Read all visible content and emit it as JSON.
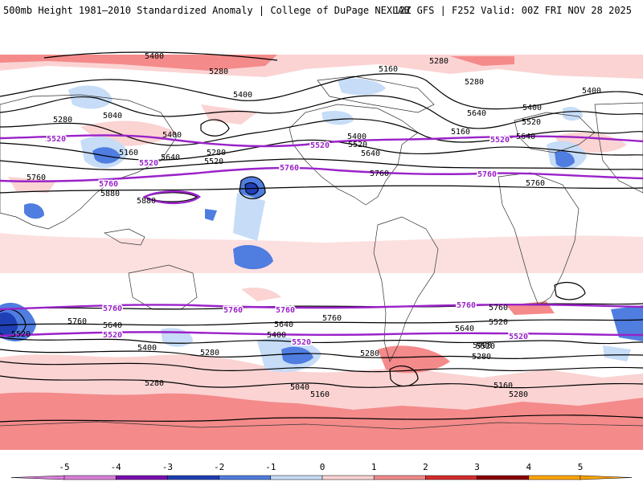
{
  "header": {
    "left": "500mb Height 1981–2010 Standardized Anomaly | College of DuPage NEXLAB",
    "right": "12Z GFS | F252 Valid: 00Z FRI NOV 28 2025"
  },
  "colors": {
    "neg5": "#d97fd9",
    "neg4": "#7a0fb0",
    "neg3": "#1f3fb5",
    "neg2": "#4f7de0",
    "neg1": "#c6dcf7",
    "zero": "#ffffff",
    "pos1": "#fbd3d3",
    "pos2": "#f48a8a",
    "pos3": "#d62b2b",
    "pos4": "#8b0000",
    "pos5": "#ffa500",
    "contour": "#000000",
    "highlight": "#9a22c9",
    "coast": "#333333"
  },
  "colorbar": {
    "ticks": [
      "-5",
      "-4",
      "-3",
      "-2",
      "-1",
      "0",
      "1",
      "2",
      "3",
      "4",
      "5"
    ],
    "colors": [
      "#d97fd9",
      "#7a0fb0",
      "#1f3fb5",
      "#4f7de0",
      "#c6dcf7",
      "#ffffff",
      "#fbd3d3",
      "#f48a8a",
      "#d62b2b",
      "#8b0000",
      "#ffa500"
    ]
  },
  "contour_labels": [
    {
      "text": "5400",
      "id": "c1"
    },
    {
      "text": "5280",
      "id": "c2"
    },
    {
      "text": "5160",
      "id": "c3"
    },
    {
      "text": "5280",
      "id": "c4"
    },
    {
      "text": "5400",
      "id": "c5"
    },
    {
      "text": "5280",
      "id": "c6"
    },
    {
      "text": "5040",
      "id": "c7"
    },
    {
      "text": "5400",
      "id": "c8"
    },
    {
      "text": "5160",
      "id": "c9"
    },
    {
      "text": "5640",
      "id": "c10"
    },
    {
      "text": "5520",
      "id": "c11"
    },
    {
      "text": "5280",
      "id": "c12"
    },
    {
      "text": "5760",
      "id": "c13"
    },
    {
      "text": "5880",
      "id": "c14"
    },
    {
      "text": "5880",
      "id": "c15"
    },
    {
      "text": "5400",
      "id": "c16"
    },
    {
      "text": "5520",
      "id": "c17"
    },
    {
      "text": "5640",
      "id": "c18"
    },
    {
      "text": "5760",
      "id": "c19"
    },
    {
      "text": "5160",
      "id": "c20"
    },
    {
      "text": "5280",
      "id": "c21"
    },
    {
      "text": "5400",
      "id": "c22"
    },
    {
      "text": "5520",
      "id": "c23"
    },
    {
      "text": "5640",
      "id": "c24"
    },
    {
      "text": "5760",
      "id": "c25"
    },
    {
      "text": "5640",
      "id": "c26"
    },
    {
      "text": "5400",
      "id": "c27"
    },
    {
      "text": "5520",
      "id": "c28"
    },
    {
      "text": "5640",
      "id": "c29"
    },
    {
      "text": "5400",
      "id": "c30"
    },
    {
      "text": "5280",
      "id": "c31"
    },
    {
      "text": "5040",
      "id": "c32"
    },
    {
      "text": "5160",
      "id": "c33"
    },
    {
      "text": "5280",
      "id": "c34"
    },
    {
      "text": "5760",
      "id": "c35"
    },
    {
      "text": "5640",
      "id": "c36"
    },
    {
      "text": "5520",
      "id": "c37"
    },
    {
      "text": "5400",
      "id": "c38"
    },
    {
      "text": "5280",
      "id": "c39"
    },
    {
      "text": "5160",
      "id": "c40"
    },
    {
      "text": "5280",
      "id": "c41"
    },
    {
      "text": "5280",
      "id": "c42"
    },
    {
      "text": "5520",
      "id": "c43"
    },
    {
      "text": "5640",
      "id": "c44"
    },
    {
      "text": "5760",
      "id": "c45"
    },
    {
      "text": "5400",
      "id": "c46"
    },
    {
      "text": "5520",
      "id": "c47"
    },
    {
      "text": "5760",
      "id": "c48"
    }
  ],
  "highlight_labels": [
    {
      "text": "5520",
      "id": "h1"
    },
    {
      "text": "5760",
      "id": "h2"
    },
    {
      "text": "5520",
      "id": "h3"
    },
    {
      "text": "5760",
      "id": "h4"
    },
    {
      "text": "5520",
      "id": "h5"
    },
    {
      "text": "5760",
      "id": "h6"
    },
    {
      "text": "5520",
      "id": "h7"
    },
    {
      "text": "5760",
      "id": "h8"
    },
    {
      "text": "5760",
      "id": "h9"
    },
    {
      "text": "5760",
      "id": "h10"
    },
    {
      "text": "5760",
      "id": "h11"
    },
    {
      "text": "5520",
      "id": "h12"
    },
    {
      "text": "5520",
      "id": "h13"
    },
    {
      "text": "5520",
      "id": "h14"
    }
  ]
}
